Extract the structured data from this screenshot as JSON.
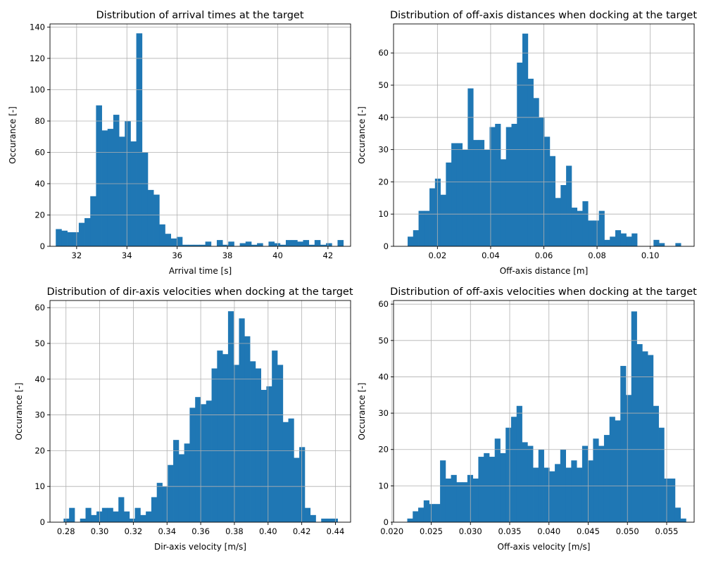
{
  "chart_data": [
    {
      "type": "bar",
      "title": "Distribution of arrival times at the target",
      "xlabel": "Arrival time [s]",
      "ylabel": "Occurance [-]",
      "xlim": [
        30.94,
        42.9
      ],
      "ylim": [
        0,
        142
      ],
      "xticks": [
        32,
        34,
        36,
        38,
        40,
        42
      ],
      "xtick_labels": [
        "32",
        "34",
        "36",
        "38",
        "40",
        "42"
      ],
      "yticks": [
        0,
        20,
        40,
        60,
        80,
        100,
        120,
        140
      ],
      "ytick_labels": [
        "0",
        "20",
        "40",
        "60",
        "80",
        "100",
        "120",
        "140"
      ],
      "grid": true,
      "color": "#1f77b4",
      "bin_start": 31.17,
      "bin_width": 0.2288,
      "values": [
        11,
        10,
        9,
        9,
        15,
        18,
        32,
        90,
        74,
        75,
        84,
        70,
        80,
        67,
        136,
        60,
        36,
        33,
        14,
        8,
        5,
        6,
        1,
        1,
        1,
        1,
        3,
        0,
        4,
        1,
        3,
        0,
        2,
        3,
        1,
        2,
        0,
        3,
        2,
        1,
        4,
        4,
        3,
        4,
        1,
        4,
        1,
        2,
        0,
        4
      ]
    },
    {
      "type": "bar",
      "title": "Distribution of off-axis distances when docking at the target",
      "xlabel": "Off-axis distance [m]",
      "ylabel": "Occurance [-]",
      "xlim": [
        0.0035,
        0.1165
      ],
      "ylim": [
        0,
        69
      ],
      "xticks": [
        0.02,
        0.04,
        0.06,
        0.08,
        0.1
      ],
      "xtick_labels": [
        "0.02",
        "0.04",
        "0.06",
        "0.08",
        "0.10"
      ],
      "yticks": [
        0,
        10,
        20,
        30,
        40,
        50,
        60
      ],
      "ytick_labels": [
        "0",
        "10",
        "20",
        "30",
        "40",
        "50",
        "60"
      ],
      "grid": true,
      "color": "#1f77b4",
      "bin_start": 0.0088,
      "bin_width": 0.002054,
      "values": [
        3,
        5,
        11,
        11,
        18,
        21,
        16,
        26,
        32,
        32,
        30,
        49,
        33,
        33,
        30,
        37,
        38,
        27,
        37,
        38,
        57,
        66,
        52,
        46,
        40,
        34,
        28,
        15,
        19,
        25,
        12,
        11,
        14,
        8,
        8,
        11,
        2,
        3,
        5,
        4,
        3,
        4,
        0,
        0,
        0,
        2,
        1,
        0,
        0,
        1
      ]
    },
    {
      "type": "bar",
      "title": "Distribution of dir-axis velocities when docking at the target",
      "xlabel": "Dir-axis velocity [m/s]",
      "ylabel": "Occurance [-]",
      "xlim": [
        0.2705,
        0.449
      ],
      "ylim": [
        0,
        62
      ],
      "xticks": [
        0.28,
        0.3,
        0.32,
        0.34,
        0.36,
        0.38,
        0.4,
        0.42,
        0.44
      ],
      "xtick_labels": [
        "0.28",
        "0.30",
        "0.32",
        "0.34",
        "0.36",
        "0.38",
        "0.40",
        "0.42",
        "0.44"
      ],
      "yticks": [
        0,
        10,
        20,
        30,
        40,
        50,
        60
      ],
      "ytick_labels": [
        "0",
        "10",
        "20",
        "30",
        "40",
        "50",
        "60"
      ],
      "grid": true,
      "color": "#1f77b4",
      "bin_start": 0.2786,
      "bin_width": 0.003254,
      "values": [
        1,
        4,
        0,
        1,
        4,
        2,
        3,
        4,
        4,
        3,
        7,
        3,
        1,
        4,
        2,
        3,
        7,
        11,
        10,
        16,
        23,
        19,
        22,
        32,
        35,
        33,
        34,
        43,
        48,
        47,
        59,
        44,
        57,
        52,
        45,
        43,
        37,
        38,
        48,
        44,
        28,
        29,
        18,
        21,
        4,
        2,
        0,
        1,
        1,
        1
      ]
    },
    {
      "type": "bar",
      "title": "Distribution of off-axis velocities when docking at the target",
      "xlabel": "Off-axis velocity [m/s]",
      "ylabel": "Occurance [-]",
      "xlim": [
        0.0202,
        0.0585
      ],
      "ylim": [
        0,
        61
      ],
      "xticks": [
        0.02,
        0.025,
        0.03,
        0.035,
        0.04,
        0.045,
        0.05,
        0.055
      ],
      "xtick_labels": [
        "0.020",
        "0.025",
        "0.030",
        "0.035",
        "0.040",
        "0.045",
        "0.050",
        "0.055"
      ],
      "yticks": [
        0,
        10,
        20,
        30,
        40,
        50,
        60
      ],
      "ytick_labels": [
        "0",
        "10",
        "20",
        "30",
        "40",
        "50",
        "60"
      ],
      "grid": true,
      "color": "#1f77b4",
      "bin_start": 0.02195,
      "bin_width": 0.0006962,
      "values": [
        1,
        3,
        4,
        6,
        5,
        5,
        17,
        12,
        13,
        11,
        11,
        13,
        12,
        18,
        19,
        18,
        23,
        19,
        26,
        29,
        32,
        22,
        21,
        15,
        20,
        15,
        14,
        16,
        20,
        15,
        17,
        15,
        21,
        17,
        23,
        21,
        24,
        29,
        28,
        43,
        35,
        58,
        49,
        47,
        46,
        32,
        26,
        12,
        12,
        4,
        1
      ]
    }
  ]
}
